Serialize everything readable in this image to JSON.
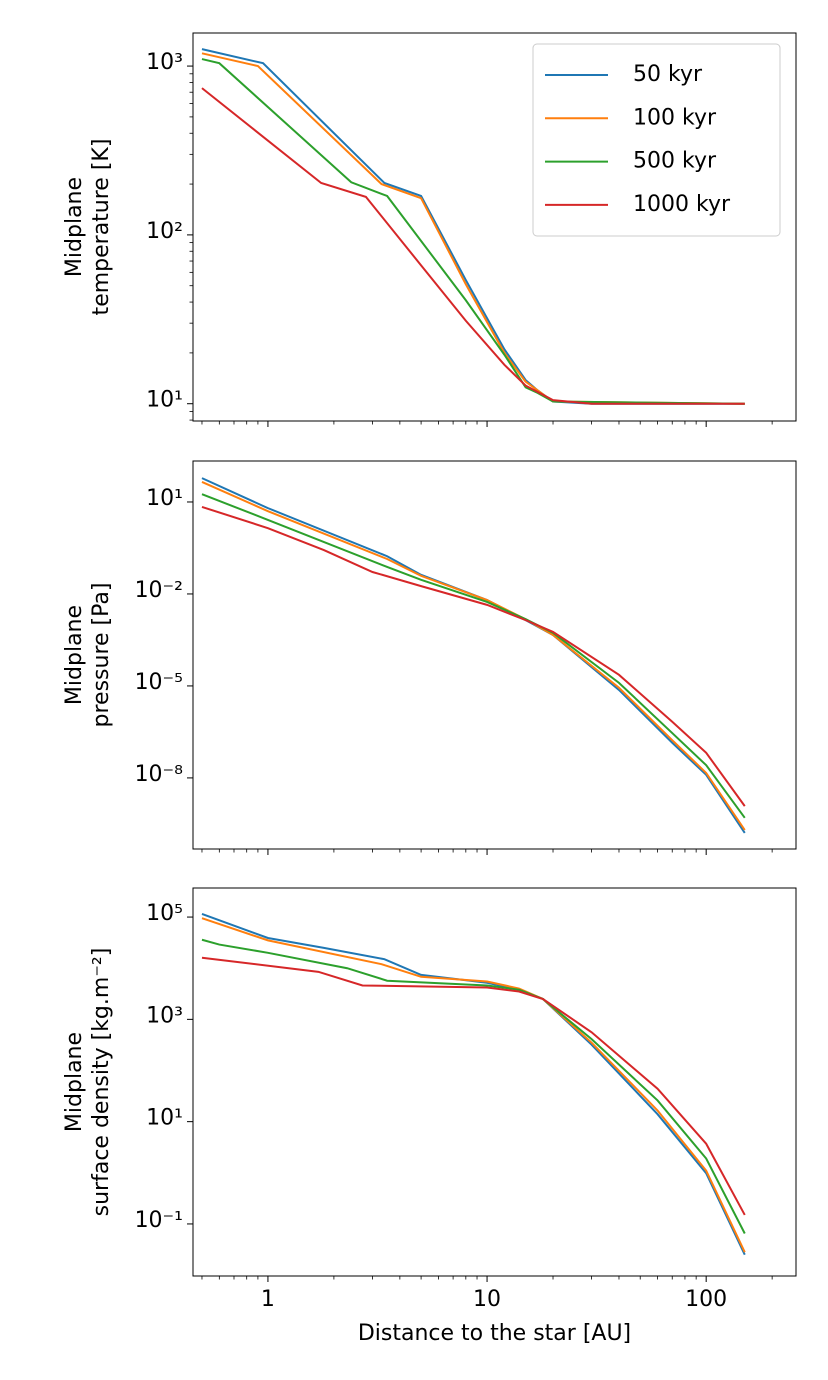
{
  "chart_data": [
    {
      "type": "line",
      "xscale": "log",
      "yscale": "log",
      "ylabel": [
        "Midplane",
        "temperature [K]"
      ],
      "xlim": [
        0.455,
        257
      ],
      "xticks": [
        1,
        10,
        100
      ],
      "show_xtick_labels": false,
      "ylim": [
        7.9,
        1570
      ],
      "yticks": [
        {
          "value": 10,
          "label": "10¹"
        },
        {
          "value": 100,
          "label": "10²"
        },
        {
          "value": 1000,
          "label": "10³"
        }
      ],
      "legend": "upper right",
      "series": [
        {
          "name": "50 kyr",
          "color": "#1f77b4",
          "x": [
            0.5,
            0.95,
            3.4,
            5,
            8,
            12,
            15,
            17,
            20,
            30,
            50,
            150
          ],
          "values": [
            1260,
            1040,
            203,
            170,
            54,
            21,
            13.8,
            12,
            10.3,
            10,
            10,
            10
          ]
        },
        {
          "name": "100 kyr",
          "color": "#ff7f0e",
          "x": [
            0.5,
            0.9,
            3.3,
            5,
            8,
            12,
            15,
            20,
            150
          ],
          "values": [
            1190,
            1000,
            200,
            165,
            51,
            20,
            13.5,
            10.3,
            10
          ]
        },
        {
          "name": "500 kyr",
          "color": "#2ca02c",
          "x": [
            0.5,
            0.6,
            2.4,
            3.5,
            8,
            12,
            15,
            17,
            20,
            150
          ],
          "values": [
            1100,
            1040,
            205,
            170,
            41,
            19.5,
            12.5,
            11.6,
            10.3,
            10
          ]
        },
        {
          "name": "1000 kyr",
          "color": "#d62728",
          "x": [
            0.5,
            1.75,
            2.8,
            5,
            8,
            12,
            15,
            20,
            30,
            150
          ],
          "values": [
            740,
            203,
            168,
            66,
            31,
            17,
            12.8,
            10.5,
            10,
            10
          ]
        }
      ]
    },
    {
      "type": "line",
      "xscale": "log",
      "yscale": "log",
      "ylabel": [
        "Midplane",
        "pressure [Pa]"
      ],
      "xlim": [
        0.455,
        257
      ],
      "xticks": [
        1,
        10,
        100
      ],
      "show_xtick_labels": false,
      "ylim": [
        4.8e-11,
        217
      ],
      "yticks": [
        {
          "value": 1e-08,
          "label": "10⁻⁸"
        },
        {
          "value": 1e-05,
          "label": "10⁻⁵"
        },
        {
          "value": 0.01,
          "label": "10⁻²"
        },
        {
          "value": 10,
          "label": "10¹"
        }
      ],
      "series": [
        {
          "color": "#1f77b4",
          "x": [
            0.5,
            1,
            3.5,
            5,
            10,
            15,
            20,
            40,
            70,
            100,
            150
          ],
          "values": [
            60,
            6.3,
            0.17,
            0.042,
            0.0063,
            0.0014,
            0.00046,
            7.4e-06,
            1.4e-07,
            1.26e-08,
            1.6e-10
          ]
        },
        {
          "color": "#ff7f0e",
          "x": [
            0.5,
            1,
            3.5,
            5,
            10,
            15,
            20,
            40,
            70,
            100,
            150
          ],
          "values": [
            45,
            5,
            0.138,
            0.039,
            0.0063,
            0.0015,
            0.00046,
            8.7e-06,
            1.7e-07,
            1.45e-08,
            2e-10
          ]
        },
        {
          "color": "#2ca02c",
          "x": [
            0.5,
            1,
            3.5,
            5,
            10,
            15,
            20,
            40,
            70,
            100,
            150
          ],
          "values": [
            18,
            2.6,
            0.076,
            0.029,
            0.0055,
            0.0015,
            0.00054,
            1.26e-05,
            2.9e-07,
            2.6e-08,
            5e-10
          ]
        },
        {
          "color": "#d62728",
          "x": [
            0.5,
            1,
            1.8,
            3,
            5,
            10,
            15,
            20,
            40,
            70,
            100,
            150
          ],
          "values": [
            6.9,
            1.4,
            0.27,
            0.052,
            0.018,
            0.0044,
            0.0014,
            0.00058,
            2.3e-05,
            6.8e-07,
            6.6e-08,
            1.2e-09
          ]
        }
      ]
    },
    {
      "type": "line",
      "xscale": "log",
      "yscale": "log",
      "ylabel": [
        "Midplane",
        "surface density [kg.m⁻²]"
      ],
      "xlabel": "Distance to the star [AU]",
      "xlim": [
        0.455,
        257
      ],
      "xticks": [
        1,
        10,
        100
      ],
      "show_xtick_labels": true,
      "ylim": [
        0.0096,
        370000
      ],
      "yticks": [
        {
          "value": 0.1,
          "label": "10⁻¹"
        },
        {
          "value": 10,
          "label": "10¹"
        },
        {
          "value": 1000,
          "label": "10³"
        },
        {
          "value": 100000,
          "label": "10⁵"
        }
      ],
      "series": [
        {
          "color": "#1f77b4",
          "x": [
            0.5,
            1,
            1.8,
            3.4,
            5,
            10,
            14,
            18,
            30,
            60,
            100,
            150
          ],
          "values": [
            115000,
            39000,
            25000,
            15000,
            7400,
            5200,
            3800,
            2500,
            320,
            14,
            0.98,
            0.025
          ]
        },
        {
          "color": "#ff7f0e",
          "x": [
            0.5,
            1,
            3.3,
            5,
            10,
            14,
            18,
            30,
            60,
            100,
            150
          ],
          "values": [
            95000,
            35000,
            12000,
            6800,
            5500,
            4000,
            2500,
            350,
            16.5,
            1.1,
            0.028
          ]
        },
        {
          "color": "#2ca02c",
          "x": [
            0.5,
            0.6,
            1,
            2.3,
            3.5,
            10,
            14,
            18,
            30,
            60,
            100,
            150
          ],
          "values": [
            36000,
            29000,
            20000,
            10000,
            5700,
            4600,
            3800,
            2500,
            410,
            26,
            1.9,
            0.065
          ]
        },
        {
          "color": "#d62728",
          "x": [
            0.5,
            1.7,
            2.7,
            10,
            14,
            18,
            30,
            60,
            100,
            150
          ],
          "values": [
            16000,
            8500,
            4600,
            4200,
            3500,
            2500,
            560,
            44,
            3.7,
            0.15
          ]
        }
      ]
    }
  ]
}
